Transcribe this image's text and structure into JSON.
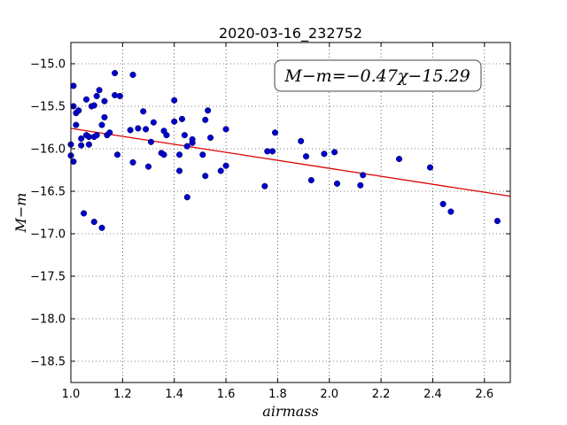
{
  "chart_data": {
    "type": "scatter",
    "title": "2020-03-16_232752",
    "xlabel": "airmass",
    "ylabel": "M−m",
    "xlim": [
      1.0,
      2.7
    ],
    "ylim": [
      -18.75,
      -14.75
    ],
    "y_inverted": true,
    "grid": true,
    "xticks": [
      "1.0",
      "1.2",
      "1.4",
      "1.6",
      "1.8",
      "2.0",
      "2.2",
      "2.4",
      "2.6"
    ],
    "yticks": [
      "−15.0",
      "−15.5",
      "−16.0",
      "−16.5",
      "−17.0",
      "−17.5",
      "−18.0",
      "−18.5"
    ],
    "xtick_values": [
      1.0,
      1.2,
      1.4,
      1.6,
      1.8,
      2.0,
      2.2,
      2.4,
      2.6
    ],
    "ytick_values": [
      -15.0,
      -15.5,
      -16.0,
      -16.5,
      -17.0,
      -17.5,
      -18.0,
      -18.5
    ],
    "annotation": "M−m=−0.47χ−15.29",
    "annotation_position": "top-right",
    "point_color": "#0000cc",
    "fit_color": "#dd0000",
    "fit": {
      "slope": -0.47,
      "intercept": -15.29
    },
    "points": [
      {
        "x": 1.0,
        "y": -16.08
      },
      {
        "x": 1.0,
        "y": -15.95
      },
      {
        "x": 1.01,
        "y": -15.26
      },
      {
        "x": 1.01,
        "y": -15.5
      },
      {
        "x": 1.01,
        "y": -16.15
      },
      {
        "x": 1.02,
        "y": -15.58
      },
      {
        "x": 1.02,
        "y": -15.72
      },
      {
        "x": 1.03,
        "y": -15.55
      },
      {
        "x": 1.04,
        "y": -15.88
      },
      {
        "x": 1.04,
        "y": -15.96
      },
      {
        "x": 1.05,
        "y": -16.76
      },
      {
        "x": 1.06,
        "y": -15.42
      },
      {
        "x": 1.06,
        "y": -15.84
      },
      {
        "x": 1.07,
        "y": -15.95
      },
      {
        "x": 1.07,
        "y": -15.86
      },
      {
        "x": 1.08,
        "y": -15.5
      },
      {
        "x": 1.09,
        "y": -15.49
      },
      {
        "x": 1.09,
        "y": -15.86
      },
      {
        "x": 1.09,
        "y": -16.86
      },
      {
        "x": 1.1,
        "y": -15.84
      },
      {
        "x": 1.1,
        "y": -15.38
      },
      {
        "x": 1.11,
        "y": -15.31
      },
      {
        "x": 1.12,
        "y": -16.93
      },
      {
        "x": 1.12,
        "y": -15.72
      },
      {
        "x": 1.13,
        "y": -15.44
      },
      {
        "x": 1.13,
        "y": -15.63
      },
      {
        "x": 1.14,
        "y": -15.84
      },
      {
        "x": 1.15,
        "y": -15.81
      },
      {
        "x": 1.17,
        "y": -15.37
      },
      {
        "x": 1.17,
        "y": -15.11
      },
      {
        "x": 1.18,
        "y": -16.07
      },
      {
        "x": 1.19,
        "y": -15.38
      },
      {
        "x": 1.23,
        "y": -15.78
      },
      {
        "x": 1.24,
        "y": -15.13
      },
      {
        "x": 1.24,
        "y": -16.16
      },
      {
        "x": 1.26,
        "y": -15.76
      },
      {
        "x": 1.28,
        "y": -15.56
      },
      {
        "x": 1.29,
        "y": -15.77
      },
      {
        "x": 1.3,
        "y": -16.21
      },
      {
        "x": 1.31,
        "y": -15.92
      },
      {
        "x": 1.32,
        "y": -15.69
      },
      {
        "x": 1.35,
        "y": -16.05
      },
      {
        "x": 1.36,
        "y": -15.79
      },
      {
        "x": 1.36,
        "y": -16.07
      },
      {
        "x": 1.37,
        "y": -15.84
      },
      {
        "x": 1.4,
        "y": -15.68
      },
      {
        "x": 1.4,
        "y": -15.43
      },
      {
        "x": 1.42,
        "y": -16.26
      },
      {
        "x": 1.42,
        "y": -16.07
      },
      {
        "x": 1.43,
        "y": -15.65
      },
      {
        "x": 1.44,
        "y": -15.84
      },
      {
        "x": 1.45,
        "y": -15.97
      },
      {
        "x": 1.45,
        "y": -16.57
      },
      {
        "x": 1.47,
        "y": -15.93
      },
      {
        "x": 1.47,
        "y": -15.89
      },
      {
        "x": 1.51,
        "y": -16.07
      },
      {
        "x": 1.52,
        "y": -16.32
      },
      {
        "x": 1.52,
        "y": -15.66
      },
      {
        "x": 1.53,
        "y": -15.55
      },
      {
        "x": 1.54,
        "y": -15.87
      },
      {
        "x": 1.58,
        "y": -16.26
      },
      {
        "x": 1.6,
        "y": -15.77
      },
      {
        "x": 1.6,
        "y": -16.2
      },
      {
        "x": 1.75,
        "y": -16.44
      },
      {
        "x": 1.76,
        "y": -16.03
      },
      {
        "x": 1.78,
        "y": -16.03
      },
      {
        "x": 1.79,
        "y": -15.81
      },
      {
        "x": 1.89,
        "y": -15.91
      },
      {
        "x": 1.91,
        "y": -16.09
      },
      {
        "x": 1.93,
        "y": -16.37
      },
      {
        "x": 1.98,
        "y": -16.06
      },
      {
        "x": 2.02,
        "y": -16.04
      },
      {
        "x": 2.03,
        "y": -16.41
      },
      {
        "x": 2.12,
        "y": -16.43
      },
      {
        "x": 2.13,
        "y": -16.31
      },
      {
        "x": 2.27,
        "y": -16.12
      },
      {
        "x": 2.39,
        "y": -16.22
      },
      {
        "x": 2.44,
        "y": -16.65
      },
      {
        "x": 2.47,
        "y": -16.74
      },
      {
        "x": 2.65,
        "y": -16.85
      }
    ]
  }
}
